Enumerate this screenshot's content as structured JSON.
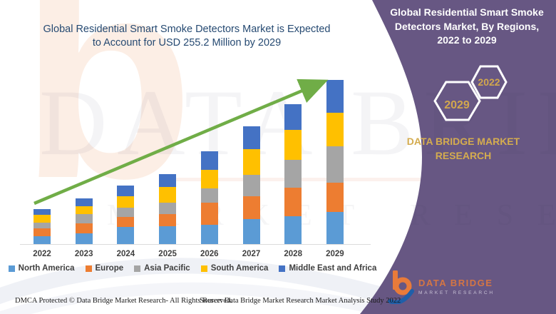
{
  "title": {
    "line1": "Global Residential Smart Smoke Detectors Market is Expected",
    "line2": "to Account for USD 255.2 Million by 2029",
    "color": "#264a72"
  },
  "chart_data": {
    "type": "bar",
    "stacked": true,
    "title": "Global Residential Smart Smoke Detectors Market is Expected to Account for USD 255.2 Million by 2029",
    "unit": "USD Million",
    "categories": [
      "2022",
      "2023",
      "2024",
      "2025",
      "2026",
      "2027",
      "2028",
      "2029"
    ],
    "series": [
      {
        "name": "North America",
        "color": "#5B9BD5",
        "values": [
          12.2,
          16.6,
          26.6,
          27.7,
          30.0,
          38.8,
          43.3,
          49.9
        ]
      },
      {
        "name": "Europe",
        "color": "#ED7D31",
        "values": [
          12.2,
          15.5,
          15.5,
          18.9,
          34.4,
          35.5,
          44.4,
          45.5
        ]
      },
      {
        "name": "Asia Pacific",
        "color": "#A5A5A5",
        "values": [
          8.9,
          14.4,
          14.4,
          17.8,
          22.2,
          33.3,
          43.3,
          56.6
        ]
      },
      {
        "name": "South America",
        "color": "#FFC000",
        "values": [
          12.2,
          12.2,
          17.8,
          24.4,
          28.9,
          39.9,
          46.6,
          52.2
        ]
      },
      {
        "name": "Middle East and Africa",
        "color": "#4472C4",
        "values": [
          8.9,
          12.2,
          16.6,
          20.0,
          28.9,
          35.5,
          39.9,
          51.0
        ]
      }
    ],
    "totals_estimated": [
      54.4,
      70.9,
      90.9,
      108.8,
      144.4,
      183.0,
      217.5,
      255.2
    ],
    "ylim": [
      0,
      260
    ],
    "grid": false,
    "legend_position": "bottom",
    "trend_arrow": {
      "color": "#70AD47",
      "direction": "up"
    }
  },
  "right_panel": {
    "bg": "#675783",
    "heading_line1": "Global Residential Smart Smoke",
    "heading_line2": "Detectors Market, By Regions,",
    "heading_line3": "2022 to 2029",
    "hexagons": [
      {
        "label": "2029"
      },
      {
        "label": "2022"
      }
    ],
    "brand": "DATA BRIDGE MARKET RESEARCH",
    "accent": "#d4ac4f"
  },
  "logo": {
    "line1": "DATA BRIDGE",
    "line2": "MARKET RESEARCH"
  },
  "footer": {
    "left": "DMCA Protected © Data Bridge Market Research- All Rights Reserved.",
    "right": "Source: Data Bridge Market Research Market Analysis Study 2022"
  },
  "watermark": {
    "letter": "b",
    "big_text": "DATA BRIDGE",
    "small_text": "MARKET RESEARCH"
  }
}
